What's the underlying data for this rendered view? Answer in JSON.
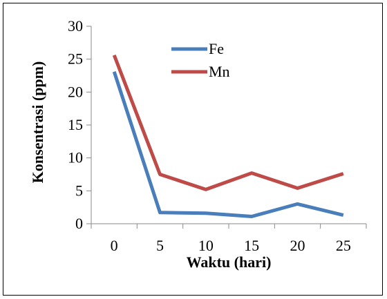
{
  "chart_data": {
    "type": "line",
    "title": "",
    "xlabel": "Waktu (hari)",
    "ylabel": "Konsentrasi (ppm)",
    "categories": [
      "0",
      "5",
      "10",
      "15",
      "20",
      "25"
    ],
    "ylim": [
      0,
      30
    ],
    "yticks": [
      "0",
      "5",
      "10",
      "15",
      "20",
      "25",
      "30"
    ],
    "grid": false,
    "legend_position": "top-center",
    "series": [
      {
        "name": "Fe",
        "color": "#4a7ebb",
        "values": [
          23.1,
          1.7,
          1.6,
          1.1,
          3.0,
          1.3
        ]
      },
      {
        "name": "Mn",
        "color": "#be4b48",
        "values": [
          25.6,
          7.5,
          5.2,
          7.7,
          5.4,
          7.6
        ]
      }
    ]
  }
}
